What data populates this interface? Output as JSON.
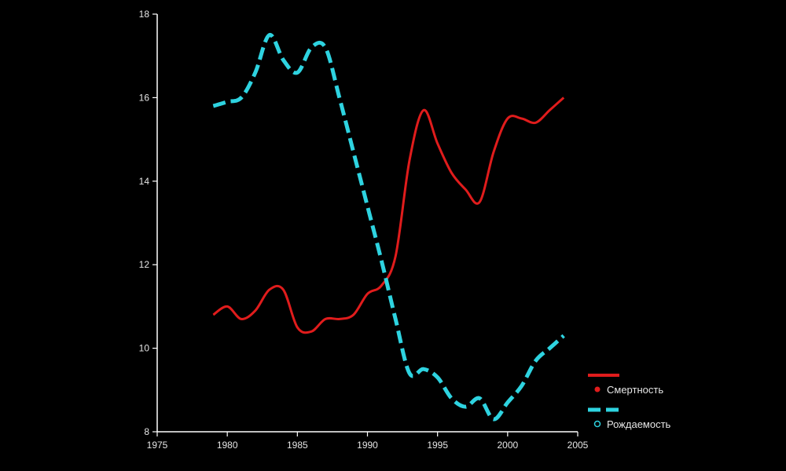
{
  "colors": {
    "background": "#000000",
    "axis": "#ffffff",
    "mortality": "#e01c1c",
    "birth": "#2ed3e0",
    "tick_text": "#e6e6e6"
  },
  "chart_data": {
    "type": "line",
    "title": "",
    "xlabel": "",
    "ylabel": "",
    "xlim": [
      1975,
      2005
    ],
    "ylim": [
      8,
      18
    ],
    "x_ticks": [
      1975,
      1980,
      1985,
      1990,
      1995,
      2000,
      2005
    ],
    "y_ticks": [
      8,
      10,
      12,
      14,
      16,
      18
    ],
    "x_tick_labels": [
      "1975",
      "1980",
      "1985",
      "1990",
      "1995",
      "2000",
      "2005"
    ],
    "y_tick_labels": [
      "8",
      "10",
      "12",
      "14",
      "16",
      "18"
    ],
    "grid": false,
    "legend_position": "bottom-right",
    "series": [
      {
        "name": "Смертность",
        "line_style": "solid",
        "marker": "filled-circle",
        "color": "#e01c1c",
        "x": [
          1979,
          1980,
          1981,
          1982,
          1983,
          1984,
          1985,
          1986,
          1987,
          1988,
          1989,
          1990,
          1991,
          1992,
          1993,
          1994,
          1995,
          1996,
          1997,
          1998,
          1999,
          2000,
          2001,
          2002,
          2003,
          2004
        ],
        "values": [
          10.8,
          11.0,
          10.7,
          10.9,
          11.4,
          11.4,
          10.5,
          10.4,
          10.7,
          10.7,
          10.8,
          11.3,
          11.5,
          12.2,
          14.5,
          15.7,
          14.9,
          14.2,
          13.8,
          13.5,
          14.7,
          15.5,
          15.5,
          15.4,
          15.7,
          16.0
        ]
      },
      {
        "name": "Рождаемость",
        "line_style": "dashed",
        "marker": "hollow-circle",
        "color": "#2ed3e0",
        "x": [
          1979,
          1980,
          1981,
          1982,
          1983,
          1984,
          1985,
          1986,
          1987,
          1988,
          1989,
          1990,
          1991,
          1992,
          1993,
          1994,
          1995,
          1996,
          1997,
          1998,
          1999,
          2000,
          2001,
          2002,
          2003,
          2004
        ],
        "values": [
          15.8,
          15.9,
          16.0,
          16.6,
          17.5,
          16.9,
          16.6,
          17.2,
          17.2,
          16.0,
          14.7,
          13.4,
          12.1,
          10.7,
          9.4,
          9.5,
          9.3,
          8.8,
          8.6,
          8.8,
          8.3,
          8.7,
          9.1,
          9.7,
          10.0,
          10.3
        ]
      }
    ]
  }
}
